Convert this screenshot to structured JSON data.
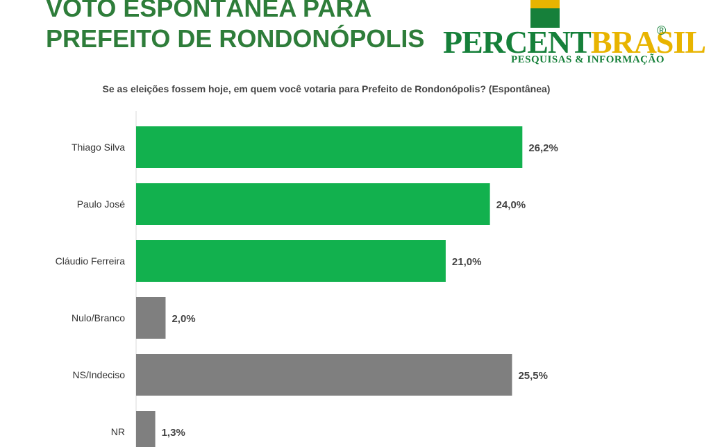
{
  "header": {
    "title_line1": "VOTO ESPONTÂNEA PARA",
    "title_line2": "PREFEITO DE RONDONÓPOLIS"
  },
  "logo": {
    "word_part1": "PERCENT",
    "word_part2": "BRASIL",
    "registered": "®",
    "tagline": "PESQUISAS & INFORMAÇÃO"
  },
  "colors": {
    "candidate_bar": "#12b14e",
    "other_bar": "#7f7f7f",
    "title": "#2e7d3a",
    "brand_green": "#16803a",
    "brand_yellow": "#e8b400"
  },
  "chart_data": {
    "type": "bar",
    "orientation": "horizontal",
    "title": "Se as eleições fossem hoje, em quem você votaria para Prefeito de Rondonópolis? (Espontânea)",
    "categories": [
      "Thiago Silva",
      "Paulo José",
      "Cláudio Ferreira",
      "Nulo/Branco",
      "NS/Indeciso",
      "NR"
    ],
    "values": [
      26.2,
      24.0,
      21.0,
      2.0,
      25.5,
      1.3
    ],
    "labels": [
      "26,2%",
      "24,0%",
      "21,0%",
      "2,0%",
      "25,5%",
      "1,3%"
    ],
    "bar_groups": [
      "candidate",
      "candidate",
      "candidate",
      "other",
      "other",
      "other"
    ],
    "xlim": [
      0,
      30
    ],
    "grid": false,
    "legend": "none"
  }
}
